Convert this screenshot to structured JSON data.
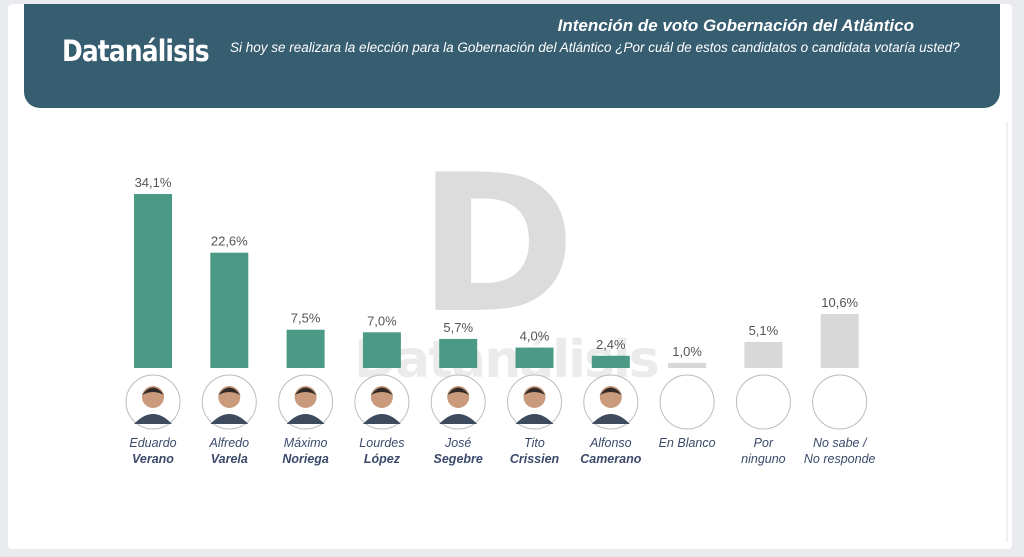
{
  "header": {
    "logo": "Datanálisis",
    "title": "Intención de voto Gobernación del Atlántico",
    "subtitle": "Si hoy se realizara la elección para la Gobernación del Atlántico ¿Por cuál de estos candidatos  o candidata votaría usted?"
  },
  "watermark": {
    "letter": "D",
    "word": "Datanálisis"
  },
  "colors": {
    "header_bg": "#365d70",
    "candidate_bar": "#4a9a86",
    "other_bar": "#d8d8d8",
    "label_text": "#3b4a6b"
  },
  "chart_data": {
    "type": "bar",
    "title": "Intención de voto Gobernación del Atlántico",
    "xlabel": "",
    "ylabel": "",
    "ylim": [
      0,
      35
    ],
    "grid": false,
    "categories": [
      {
        "first": "Eduardo",
        "second": "Verano",
        "value": 34.1,
        "label": "34,1%",
        "group": "candidate",
        "photo": true
      },
      {
        "first": "Alfredo",
        "second": "Varela",
        "value": 22.6,
        "label": "22,6%",
        "group": "candidate",
        "photo": true
      },
      {
        "first": "Máximo",
        "second": "Noriega",
        "value": 7.5,
        "label": "7,5%",
        "group": "candidate",
        "photo": true
      },
      {
        "first": "Lourdes",
        "second": "López",
        "value": 7.0,
        "label": "7,0%",
        "group": "candidate",
        "photo": true
      },
      {
        "first": "José",
        "second": "Segebre",
        "value": 5.7,
        "label": "5,7%",
        "group": "candidate",
        "photo": true
      },
      {
        "first": "Tito",
        "second": "Crissien",
        "value": 4.0,
        "label": "4,0%",
        "group": "candidate",
        "photo": true
      },
      {
        "first": "Alfonso",
        "second": "Camerano",
        "value": 2.4,
        "label": "2,4%",
        "group": "candidate",
        "photo": true
      },
      {
        "first": "En Blanco",
        "second": "",
        "value": 1.0,
        "label": "1,0%",
        "group": "other",
        "photo": false
      },
      {
        "first": "Por",
        "second": "ninguno",
        "value": 5.1,
        "label": "5,1%",
        "group": "other",
        "photo": false
      },
      {
        "first": "No sabe /",
        "second": "No responde",
        "value": 10.6,
        "label": "10,6%",
        "group": "other",
        "photo": false
      }
    ]
  }
}
